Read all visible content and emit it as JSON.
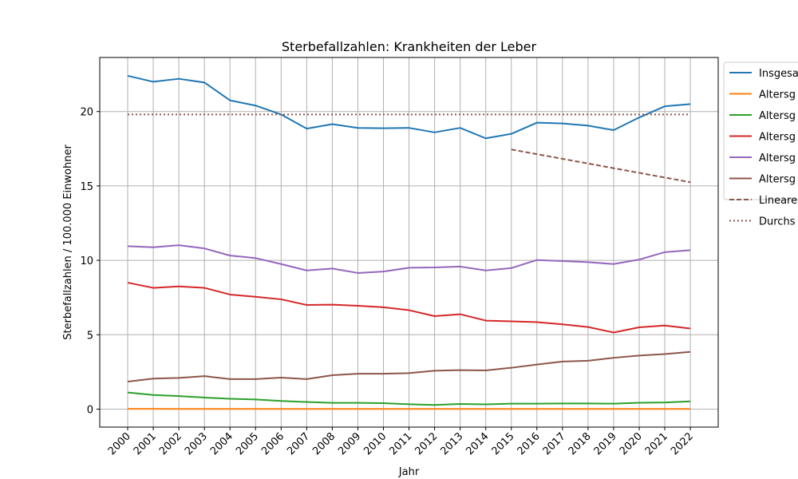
{
  "chart_data": {
    "type": "line",
    "title": "Sterbefallzahlen: Krankheiten der Leber",
    "xlabel": "Jahr",
    "ylabel": "Sterbefallzahlen / 100.000 Einwohner",
    "x": [
      "2000",
      "2001",
      "2002",
      "2003",
      "2004",
      "2005",
      "2006",
      "2007",
      "2008",
      "2009",
      "2010",
      "2011",
      "2012",
      "2013",
      "2014",
      "2015",
      "2016",
      "2017",
      "2018",
      "2019",
      "2020",
      "2021",
      "2022"
    ],
    "yticks": [
      0,
      5,
      10,
      15,
      20
    ],
    "ylim": [
      -1.2,
      23.5
    ],
    "grid": true,
    "legend_position": "right, outside plot, partially cut off",
    "series": [
      {
        "name": "Insgesa",
        "color": "#1f77b4",
        "style": "solid",
        "values": [
          22.4,
          22.0,
          22.2,
          21.95,
          20.75,
          20.4,
          19.8,
          18.85,
          19.15,
          18.9,
          18.88,
          18.9,
          18.6,
          18.9,
          18.2,
          18.5,
          19.25,
          19.2,
          19.05,
          18.75,
          19.6,
          20.35,
          20.5
        ]
      },
      {
        "name": "Altersg",
        "color": "#ff7f0e",
        "style": "solid",
        "values": [
          0.02,
          0.02,
          0.01,
          0.01,
          0.01,
          0.01,
          0.01,
          0.01,
          0.01,
          0.01,
          0.01,
          0.01,
          0.01,
          0.01,
          0.01,
          0.01,
          0.01,
          0.01,
          0.01,
          0.01,
          0.01,
          0.01,
          0.01
        ]
      },
      {
        "name": "Altersg",
        "color": "#2ca02c",
        "style": "solid",
        "values": [
          1.12,
          0.95,
          0.88,
          0.78,
          0.7,
          0.65,
          0.55,
          0.48,
          0.42,
          0.42,
          0.4,
          0.33,
          0.28,
          0.35,
          0.32,
          0.37,
          0.37,
          0.38,
          0.38,
          0.37,
          0.43,
          0.45,
          0.52
        ]
      },
      {
        "name": "Altersg",
        "color": "#d62728",
        "style": "solid",
        "values": [
          8.5,
          8.15,
          8.25,
          8.15,
          7.7,
          7.55,
          7.38,
          7.0,
          7.02,
          6.95,
          6.85,
          6.65,
          6.25,
          6.38,
          5.95,
          5.9,
          5.85,
          5.7,
          5.52,
          5.15,
          5.5,
          5.62,
          5.42
        ]
      },
      {
        "name": "Altersg",
        "color": "#9467bd",
        "style": "solid",
        "values": [
          10.95,
          10.88,
          11.02,
          10.8,
          10.32,
          10.15,
          9.75,
          9.32,
          9.45,
          9.15,
          9.25,
          9.5,
          9.52,
          9.58,
          9.32,
          9.48,
          10.02,
          9.95,
          9.88,
          9.75,
          10.05,
          10.55,
          10.68
        ]
      },
      {
        "name": "Altersg",
        "color": "#8c564b",
        "style": "solid",
        "values": [
          1.85,
          2.05,
          2.1,
          2.22,
          2.02,
          2.02,
          2.12,
          2.02,
          2.28,
          2.38,
          2.38,
          2.42,
          2.58,
          2.62,
          2.6,
          2.78,
          3.0,
          3.2,
          3.25,
          3.45,
          3.6,
          3.7,
          3.85
        ]
      },
      {
        "name": "Lineare",
        "color": "#8c564b",
        "style": "dashed",
        "x_start": "2015",
        "x_end": "2022",
        "y_start": 17.45,
        "y_end": 15.25
      },
      {
        "name": "Durchs",
        "color": "#8c564b",
        "style": "dotted",
        "value": 19.8
      }
    ]
  }
}
